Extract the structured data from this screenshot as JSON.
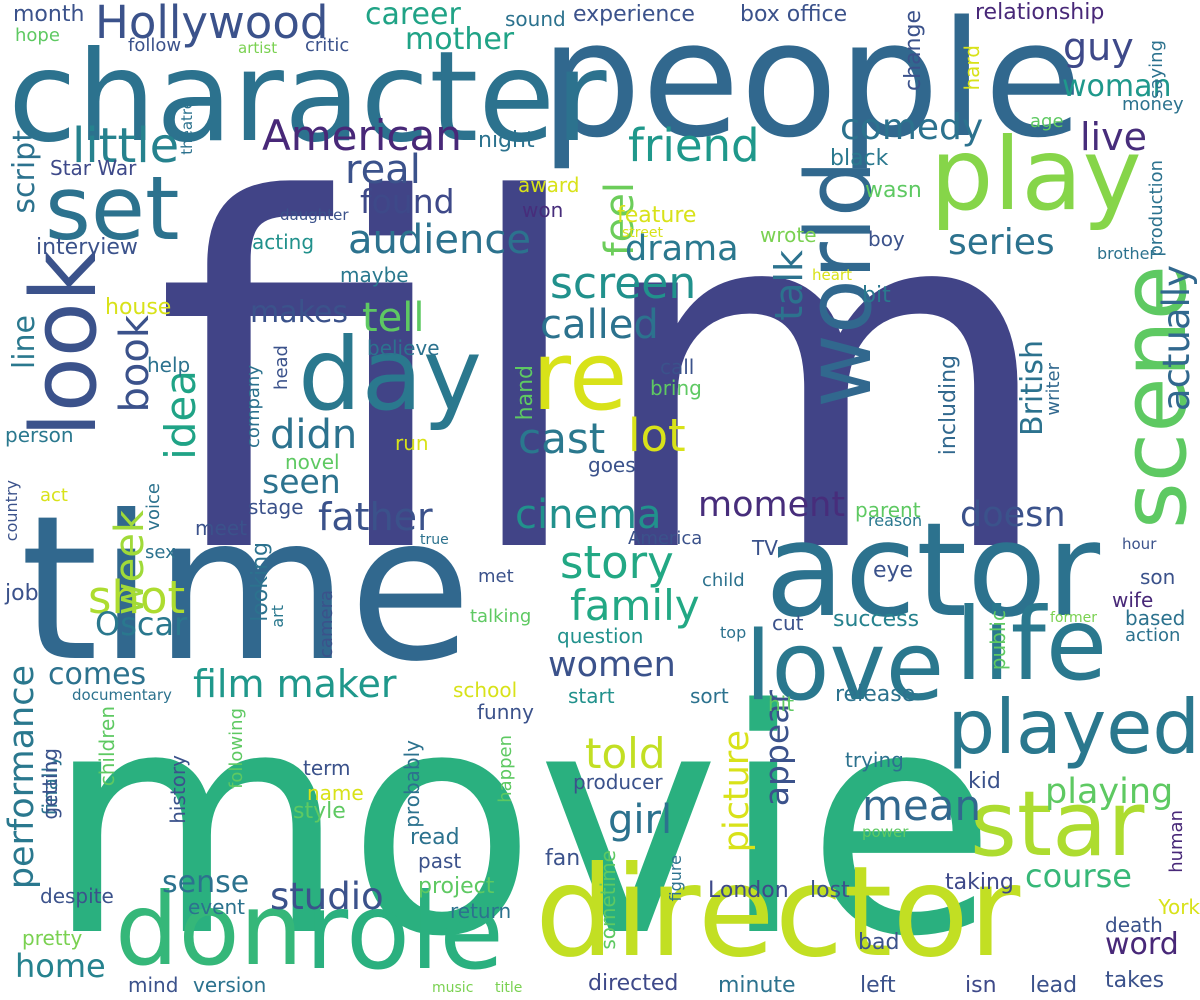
{
  "words": [
    {
      "text": "film",
      "color": "#414487"
    },
    {
      "text": "movie",
      "color": "#2ab07f"
    },
    {
      "text": "time",
      "color": "#31688e"
    },
    {
      "text": "people",
      "color": "#31688e"
    },
    {
      "text": "character",
      "color": "#2c728e"
    },
    {
      "text": "actor",
      "color": "#2c728e"
    },
    {
      "text": "director",
      "color": "#c2df23"
    },
    {
      "text": "life",
      "color": "#2a788e"
    },
    {
      "text": "love",
      "color": "#2a788e"
    },
    {
      "text": "role",
      "color": "#2ab07f"
    },
    {
      "text": "don",
      "color": "#35b779"
    },
    {
      "text": "star",
      "color": "#addc30"
    },
    {
      "text": "played",
      "color": "#2a788e"
    },
    {
      "text": "day",
      "color": "#2a788e"
    },
    {
      "text": "re",
      "color": "#d8e219"
    },
    {
      "text": "play",
      "color": "#86d549"
    },
    {
      "text": "look",
      "color": "#3b528b"
    },
    {
      "text": "set",
      "color": "#2c728e"
    },
    {
      "text": "scene",
      "color": "#5ec962"
    },
    {
      "text": "world",
      "color": "#31688e"
    },
    {
      "text": "Hollywood",
      "color": "#3b528b"
    },
    {
      "text": "American",
      "color": "#482878"
    },
    {
      "text": "little",
      "color": "#26828e"
    },
    {
      "text": "audience",
      "color": "#2c728e"
    },
    {
      "text": "friend",
      "color": "#1f988b"
    },
    {
      "text": "comedy",
      "color": "#2c728e"
    },
    {
      "text": "live",
      "color": "#472d7b"
    },
    {
      "text": "real",
      "color": "#3b528b"
    },
    {
      "text": "found",
      "color": "#3e4989"
    },
    {
      "text": "feel",
      "color": "#6ccd5a"
    },
    {
      "text": "screen",
      "color": "#21918c"
    },
    {
      "text": "series",
      "color": "#2c728e"
    },
    {
      "text": "called",
      "color": "#2c728e"
    },
    {
      "text": "tell",
      "color": "#5ec962"
    },
    {
      "text": "makes",
      "color": "#3b528b"
    },
    {
      "text": "book",
      "color": "#3b528b"
    },
    {
      "text": "idea",
      "color": "#20a386"
    },
    {
      "text": "didn",
      "color": "#2c728e"
    },
    {
      "text": "cast",
      "color": "#2a788e"
    },
    {
      "text": "lot",
      "color": "#d8e219"
    },
    {
      "text": "seen",
      "color": "#2c728e"
    },
    {
      "text": "father",
      "color": "#3b528b"
    },
    {
      "text": "cinema",
      "color": "#21918c"
    },
    {
      "text": "moment",
      "color": "#472d7b"
    },
    {
      "text": "doesn",
      "color": "#3b528b"
    },
    {
      "text": "story",
      "color": "#22a884"
    },
    {
      "text": "family",
      "color": "#22a884"
    },
    {
      "text": "shot",
      "color": "#addc30"
    },
    {
      "text": "Oscar",
      "color": "#2a788e"
    },
    {
      "text": "women",
      "color": "#3b528b"
    },
    {
      "text": "film maker",
      "color": "#1f988b"
    },
    {
      "text": "told",
      "color": "#c2df23"
    },
    {
      "text": "girl",
      "color": "#2c728e"
    },
    {
      "text": "mean",
      "color": "#31688e"
    },
    {
      "text": "playing",
      "color": "#5ec962"
    },
    {
      "text": "picture",
      "color": "#d8e219"
    },
    {
      "text": "appear",
      "color": "#3b528b"
    },
    {
      "text": "performance",
      "color": "#2a788e"
    },
    {
      "text": "comes",
      "color": "#2c728e"
    },
    {
      "text": "home",
      "color": "#26828e"
    },
    {
      "text": "sense",
      "color": "#2c728e"
    },
    {
      "text": "studio",
      "color": "#3b528b"
    },
    {
      "text": "course",
      "color": "#37b878"
    },
    {
      "text": "word",
      "color": "#482878"
    },
    {
      "text": "week",
      "color": "#a0da39"
    },
    {
      "text": "career",
      "color": "#20a386"
    },
    {
      "text": "mother",
      "color": "#20a386"
    },
    {
      "text": "guy",
      "color": "#3e4989"
    },
    {
      "text": "woman",
      "color": "#1f988b"
    },
    {
      "text": "experience",
      "color": "#3b528b"
    },
    {
      "text": "box office",
      "color": "#3b528b"
    },
    {
      "text": "relationship",
      "color": "#482878"
    },
    {
      "text": "month",
      "color": "#3b528b"
    },
    {
      "text": "sound",
      "color": "#2c728e"
    },
    {
      "text": "hope",
      "color": "#5ec962"
    },
    {
      "text": "follow",
      "color": "#3b528b"
    },
    {
      "text": "artist",
      "color": "#7ad151"
    },
    {
      "text": "critic",
      "color": "#3b528b"
    },
    {
      "text": "theatre",
      "color": "#2c728e"
    },
    {
      "text": "night",
      "color": "#2c728e"
    },
    {
      "text": "change",
      "color": "#3b528b"
    },
    {
      "text": "hard",
      "color": "#d8e219"
    },
    {
      "text": "saying",
      "color": "#2c728e"
    },
    {
      "text": "money",
      "color": "#2c728e"
    },
    {
      "text": "age",
      "color": "#5ec962"
    },
    {
      "text": "black",
      "color": "#2a788e"
    },
    {
      "text": "script",
      "color": "#2c728e"
    },
    {
      "text": "Star War",
      "color": "#3e4989"
    },
    {
      "text": "award",
      "color": "#d8e219"
    },
    {
      "text": "won",
      "color": "#472d7b"
    },
    {
      "text": "daughter",
      "color": "#3b528b"
    },
    {
      "text": "feature",
      "color": "#d8e219"
    },
    {
      "text": "wasn",
      "color": "#5ec962"
    },
    {
      "text": "production",
      "color": "#2c728e"
    },
    {
      "text": "street",
      "color": "#d8e219"
    },
    {
      "text": "drama",
      "color": "#2a788e"
    },
    {
      "text": "interview",
      "color": "#3b528b"
    },
    {
      "text": "acting",
      "color": "#21918c"
    },
    {
      "text": "wrote",
      "color": "#7ad151"
    },
    {
      "text": "boy",
      "color": "#3b528b"
    },
    {
      "text": "brother",
      "color": "#2c728e"
    },
    {
      "text": "maybe",
      "color": "#2a788e"
    },
    {
      "text": "heart",
      "color": "#d8e219"
    },
    {
      "text": "talk",
      "color": "#2c728e"
    },
    {
      "text": "house",
      "color": "#d8e219"
    },
    {
      "text": "bit",
      "color": "#2a788e"
    },
    {
      "text": "line",
      "color": "#2a788e"
    },
    {
      "text": "head",
      "color": "#3b528b"
    },
    {
      "text": "help",
      "color": "#2c728e"
    },
    {
      "text": "believe",
      "color": "#2c728e"
    },
    {
      "text": "call",
      "color": "#3b528b"
    },
    {
      "text": "actually",
      "color": "#31688e"
    },
    {
      "text": "bring",
      "color": "#5ec962"
    },
    {
      "text": "British",
      "color": "#2c728e"
    },
    {
      "text": "writer",
      "color": "#31688e"
    },
    {
      "text": "hand",
      "color": "#5ec962"
    },
    {
      "text": "including",
      "color": "#31688e"
    },
    {
      "text": "company",
      "color": "#2c728e"
    },
    {
      "text": "person",
      "color": "#2a788e"
    },
    {
      "text": "run",
      "color": "#d8e219"
    },
    {
      "text": "novel",
      "color": "#5ec962"
    },
    {
      "text": "goes",
      "color": "#3b528b"
    },
    {
      "text": "country",
      "color": "#3b528b"
    },
    {
      "text": "act",
      "color": "#d8e219"
    },
    {
      "text": "voice",
      "color": "#2c728e"
    },
    {
      "text": "meet",
      "color": "#3b528b"
    },
    {
      "text": "stage",
      "color": "#3b528b"
    },
    {
      "text": "parent",
      "color": "#5ec962"
    },
    {
      "text": "reason",
      "color": "#2a788e"
    },
    {
      "text": "true",
      "color": "#2c728e"
    },
    {
      "text": "America",
      "color": "#3b528b"
    },
    {
      "text": "TV",
      "color": "#3b528b"
    },
    {
      "text": "hour",
      "color": "#3b528b"
    },
    {
      "text": "sex",
      "color": "#2c728e"
    },
    {
      "text": "eye",
      "color": "#3b528b"
    },
    {
      "text": "met",
      "color": "#3b528b"
    },
    {
      "text": "child",
      "color": "#2c728e"
    },
    {
      "text": "son",
      "color": "#3b528b"
    },
    {
      "text": "job",
      "color": "#3b528b"
    },
    {
      "text": "looking",
      "color": "#2c728e"
    },
    {
      "text": "art",
      "color": "#2a788e"
    },
    {
      "text": "camera",
      "color": "#3b528b"
    },
    {
      "text": "wife",
      "color": "#482878"
    },
    {
      "text": "talking",
      "color": "#5ec962"
    },
    {
      "text": "question",
      "color": "#21918c"
    },
    {
      "text": "cut",
      "color": "#3b528b"
    },
    {
      "text": "success",
      "color": "#26828e"
    },
    {
      "text": "top",
      "color": "#2c728e"
    },
    {
      "text": "based",
      "color": "#2c728e"
    },
    {
      "text": "former",
      "color": "#7ad151"
    },
    {
      "text": "action",
      "color": "#2c728e"
    },
    {
      "text": "public",
      "color": "#5ec962"
    },
    {
      "text": "school",
      "color": "#d8e219"
    },
    {
      "text": "start",
      "color": "#21918c"
    },
    {
      "text": "sort",
      "color": "#2c728e"
    },
    {
      "text": "release",
      "color": "#2c728e"
    },
    {
      "text": "documentary",
      "color": "#2c728e"
    },
    {
      "text": "funny",
      "color": "#3b528b"
    },
    {
      "text": "hit",
      "color": "#5ec962"
    },
    {
      "text": "finally",
      "color": "#2c728e"
    },
    {
      "text": "getting",
      "color": "#3b528b"
    },
    {
      "text": "children",
      "color": "#5ec962"
    },
    {
      "text": "history",
      "color": "#3b528b"
    },
    {
      "text": "following",
      "color": "#5ec962"
    },
    {
      "text": "term",
      "color": "#3b528b"
    },
    {
      "text": "name",
      "color": "#d8e219"
    },
    {
      "text": "style",
      "color": "#5ec962"
    },
    {
      "text": "probably",
      "color": "#2c728e"
    },
    {
      "text": "happen",
      "color": "#5ec962"
    },
    {
      "text": "producer",
      "color": "#3b528b"
    },
    {
      "text": "trying",
      "color": "#2c728e"
    },
    {
      "text": "kid",
      "color": "#3b528b"
    },
    {
      "text": "power",
      "color": "#5ec962"
    },
    {
      "text": "human",
      "color": "#482878"
    },
    {
      "text": "read",
      "color": "#2c728e"
    },
    {
      "text": "past",
      "color": "#3b528b"
    },
    {
      "text": "fan",
      "color": "#3b528b"
    },
    {
      "text": "despite",
      "color": "#3b528b"
    },
    {
      "text": "event",
      "color": "#2c728e"
    },
    {
      "text": "project",
      "color": "#5ec962"
    },
    {
      "text": "return",
      "color": "#2c728e"
    },
    {
      "text": "sometime",
      "color": "#5ec962"
    },
    {
      "text": "figure",
      "color": "#2c728e"
    },
    {
      "text": "London",
      "color": "#3e4989"
    },
    {
      "text": "lost",
      "color": "#3b528b"
    },
    {
      "text": "taking",
      "color": "#3e4989"
    },
    {
      "text": "York",
      "color": "#d8e219"
    },
    {
      "text": "death",
      "color": "#3b528b"
    },
    {
      "text": "pretty",
      "color": "#7ad151"
    },
    {
      "text": "bad",
      "color": "#3b528b"
    },
    {
      "text": "takes",
      "color": "#3b528b"
    },
    {
      "text": "mind",
      "color": "#3b528b"
    },
    {
      "text": "version",
      "color": "#2c728e"
    },
    {
      "text": "music",
      "color": "#7ad151"
    },
    {
      "text": "title",
      "color": "#7ad151"
    },
    {
      "text": "directed",
      "color": "#3e4989"
    },
    {
      "text": "minute",
      "color": "#2c728e"
    },
    {
      "text": "left",
      "color": "#3b528b"
    },
    {
      "text": "isn",
      "color": "#3e4989"
    },
    {
      "text": "lead",
      "color": "#3b528b"
    }
  ]
}
